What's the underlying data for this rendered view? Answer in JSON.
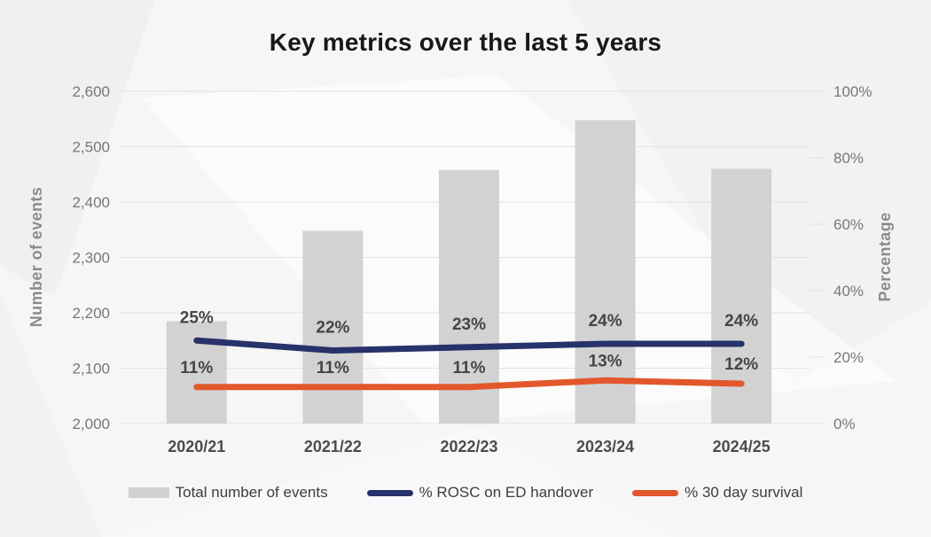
{
  "title": "Key metrics over the last 5 years",
  "chart_data": {
    "type": "combo-bar-line",
    "categories": [
      "2020/21",
      "2021/22",
      "2022/23",
      "2023/24",
      "2024/25"
    ],
    "series": [
      {
        "name": "Total number of events",
        "kind": "bar",
        "axis": "left",
        "color_key": "bar",
        "values": [
          2185,
          2348,
          2458,
          2548,
          2460
        ]
      },
      {
        "name": "% ROSC on ED handover",
        "kind": "line",
        "axis": "right",
        "color_key": "rosc_line",
        "values": [
          25,
          22,
          23,
          24,
          24
        ],
        "point_labels": [
          "25%",
          "22%",
          "23%",
          "24%",
          "24%"
        ],
        "label_offset": 20
      },
      {
        "name": "% 30 day survival",
        "kind": "line",
        "axis": "right",
        "color_key": "survival_line",
        "values": [
          11,
          11,
          11,
          13,
          12
        ],
        "point_labels": [
          "11%",
          "11%",
          "11%",
          "13%",
          "12%"
        ],
        "label_offset": 16
      }
    ],
    "left_axis": {
      "label": "Number of events",
      "min": 2000,
      "max": 2600,
      "step": 100,
      "tick_labels": [
        "2,000",
        "2,100",
        "2,200",
        "2,300",
        "2,400",
        "2,500",
        "2,600"
      ]
    },
    "right_axis": {
      "label": "Percentage",
      "min": 0,
      "max": 100,
      "step": 20,
      "tick_labels": [
        "0%",
        "20%",
        "40%",
        "60%",
        "80%",
        "100%"
      ]
    },
    "grid": true,
    "legend_position": "bottom"
  },
  "legend": {
    "items": [
      {
        "label": "Total number of events",
        "swatch": "bar",
        "color_key": "bar"
      },
      {
        "label": "% ROSC on ED handover",
        "swatch": "line",
        "color_key": "rosc_line"
      },
      {
        "label": "% 30 day survival",
        "swatch": "line",
        "color_key": "survival_line"
      }
    ]
  },
  "colors": {
    "bar": "#d2d2d3",
    "rosc_line": "#27316a",
    "survival_line": "#e2572b",
    "grid": "#e2e2e4"
  }
}
